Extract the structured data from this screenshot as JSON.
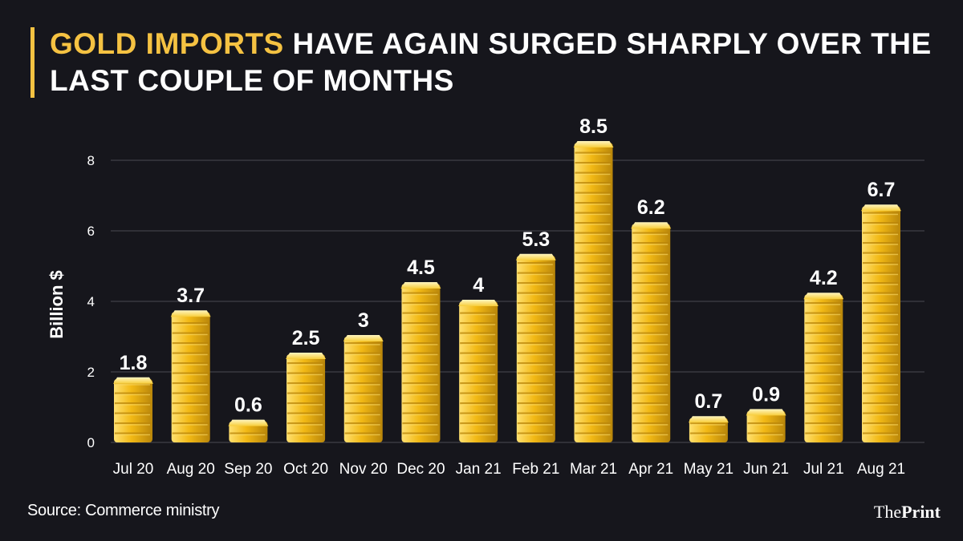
{
  "title": {
    "highlight": "GOLD IMPORTS",
    "rest": " HAVE AGAIN SURGED SHARPLY OVER THE LAST COUPLE OF MONTHS"
  },
  "source": "Source: Commerce ministry",
  "logo": {
    "the": "The",
    "print": "Print"
  },
  "colors": {
    "background": "#16161c",
    "accent": "#f5c242",
    "bar_light": "#ffe070",
    "bar_mid": "#f2b915",
    "bar_dark": "#b9860a",
    "gridline": "#4a4a52"
  },
  "chart_data": {
    "type": "bar",
    "title": "Gold imports have again surged sharply over the last couple of months",
    "xlabel": "",
    "ylabel": "Billion $",
    "ylim": [
      0,
      9
    ],
    "yticks": [
      0,
      2,
      4,
      6,
      8
    ],
    "grid": true,
    "categories": [
      "Jul 20",
      "Aug 20",
      "Sep 20",
      "Oct 20",
      "Nov 20",
      "Dec 20",
      "Jan 21",
      "Feb 21",
      "Mar 21",
      "Apr 21",
      "May 21",
      "Jun 21",
      "Jul 21",
      "Aug 21"
    ],
    "values": [
      1.8,
      3.7,
      0.6,
      2.5,
      3,
      4.5,
      4,
      5.3,
      8.5,
      6.2,
      0.7,
      0.9,
      4.2,
      6.7
    ],
    "value_labels": [
      "1.8",
      "3.7",
      "0.6",
      "2.5",
      "3",
      "4.5",
      "4",
      "5.3",
      "8.5",
      "6.2",
      "0.7",
      "0.9",
      "4.2",
      "6.7"
    ]
  }
}
